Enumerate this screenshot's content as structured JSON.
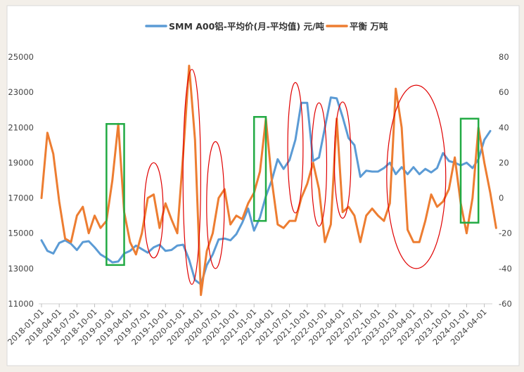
{
  "chart_data": {
    "type": "line",
    "colors": {
      "aluminium": "#5b9bd5",
      "balance": "#ed7d31",
      "highlight_rect": "#22aa44",
      "highlight_ellipse": "#e00000"
    },
    "legend": {
      "placement": "top-center"
    },
    "grid": false,
    "y_left": {
      "min": 11000,
      "max": 25000,
      "ticks": [
        "25000",
        "23000",
        "21000",
        "19000",
        "17000",
        "15000",
        "13000",
        "11000"
      ]
    },
    "y_right": {
      "min": -60,
      "max": 80,
      "ticks": [
        "80",
        "60",
        "40",
        "20",
        "0",
        "-20",
        "-40",
        "-60"
      ]
    },
    "x_ticks": [
      "2018-01-01",
      "2018-04-01",
      "2018-07-01",
      "2018-10-01",
      "2019-01-01",
      "2019-04-01",
      "2019-07-01",
      "2019-10-01",
      "2020-01-01",
      "2020-04-01",
      "2020-07-01",
      "2020-10-01",
      "2021-01-01",
      "2021-04-01",
      "2021-07-01",
      "2021-10-01",
      "2022-01-01",
      "2022-04-01",
      "2022-07-01",
      "2022-10-01",
      "2023-01-01",
      "2023-04-01",
      "2023-07-01",
      "2023-10-01",
      "2024-01-01",
      "2024-04-01"
    ],
    "series": [
      {
        "name": "SMM A00铝-平均价(月-平均值) 元/吨",
        "axis": "left",
        "values": [
          14600,
          14000,
          13850,
          14450,
          14600,
          14400,
          14050,
          14500,
          14550,
          14200,
          13800,
          13600,
          13350,
          13400,
          13850,
          14000,
          14300,
          14100,
          13900,
          14200,
          14350,
          14000,
          14050,
          14300,
          14350,
          13500,
          12350,
          12100,
          13200,
          13800,
          14650,
          14700,
          14600,
          14950,
          15600,
          16400,
          15150,
          15900,
          17100,
          18000,
          19200,
          18650,
          19150,
          20300,
          22400,
          22400,
          19100,
          19300,
          21000,
          22700,
          22650,
          21600,
          20400,
          20000,
          18200,
          18550,
          18500,
          18500,
          18700,
          19000,
          18350,
          18750,
          18350,
          18750,
          18350,
          18650,
          18450,
          18700,
          19550,
          19100,
          19000,
          18850,
          19000,
          18700,
          19200,
          20300,
          20800
        ]
      },
      {
        "name": "平衡 万吨",
        "axis": "right",
        "values": [
          0,
          37,
          25,
          -2,
          -23,
          -25,
          -10,
          -5,
          -20,
          -10,
          -17,
          -13,
          10,
          42,
          -8,
          -25,
          -32,
          -20,
          0,
          2,
          -17,
          -3,
          -12,
          -20,
          25,
          75,
          33,
          -55,
          -30,
          -20,
          0,
          5,
          -15,
          -10,
          -12,
          -3,
          3,
          15,
          45,
          10,
          -15,
          -17,
          -13,
          -13,
          0,
          8,
          20,
          5,
          -25,
          -15,
          45,
          -8,
          -5,
          -10,
          -25,
          -10,
          -6,
          -10,
          -13,
          -3,
          62,
          40,
          -18,
          -25,
          -25,
          -13,
          2,
          -5,
          -2,
          5,
          23,
          -3,
          -20,
          0,
          40,
          20,
          3,
          -17
        ]
      }
    ],
    "highlights": {
      "rects": [
        {
          "from": "2018-12-01",
          "to": "2019-03-01",
          "y_top": 21200,
          "y_bottom": 13200
        },
        {
          "from": "2021-01-01",
          "to": "2021-03-01",
          "y_top": 21600,
          "y_bottom": 15700
        },
        {
          "from": "2023-12-01",
          "to": "2024-03-01",
          "y_top": 21500,
          "y_bottom": 15600
        }
      ],
      "ellipses": [
        {
          "cx": "2019-08-01",
          "cy": 16300,
          "rx_months": 1.6,
          "ry": 2700
        },
        {
          "cx": "2020-02-15",
          "cy": 18200,
          "rx_months": 1.5,
          "ry": 6100
        },
        {
          "cx": "2020-06-15",
          "cy": 16600,
          "rx_months": 1.5,
          "ry": 3600
        },
        {
          "cx": "2021-08-01",
          "cy": 19850,
          "rx_months": 1.3,
          "ry": 3700
        },
        {
          "cx": "2021-12-01",
          "cy": 18900,
          "rx_months": 1.3,
          "ry": 3500
        },
        {
          "cx": "2022-04-01",
          "cy": 19150,
          "rx_months": 1.4,
          "ry": 3300
        },
        {
          "cx": "2023-04-15",
          "cy": 18200,
          "rx_months": 5.0,
          "ry": 5200
        }
      ]
    }
  }
}
